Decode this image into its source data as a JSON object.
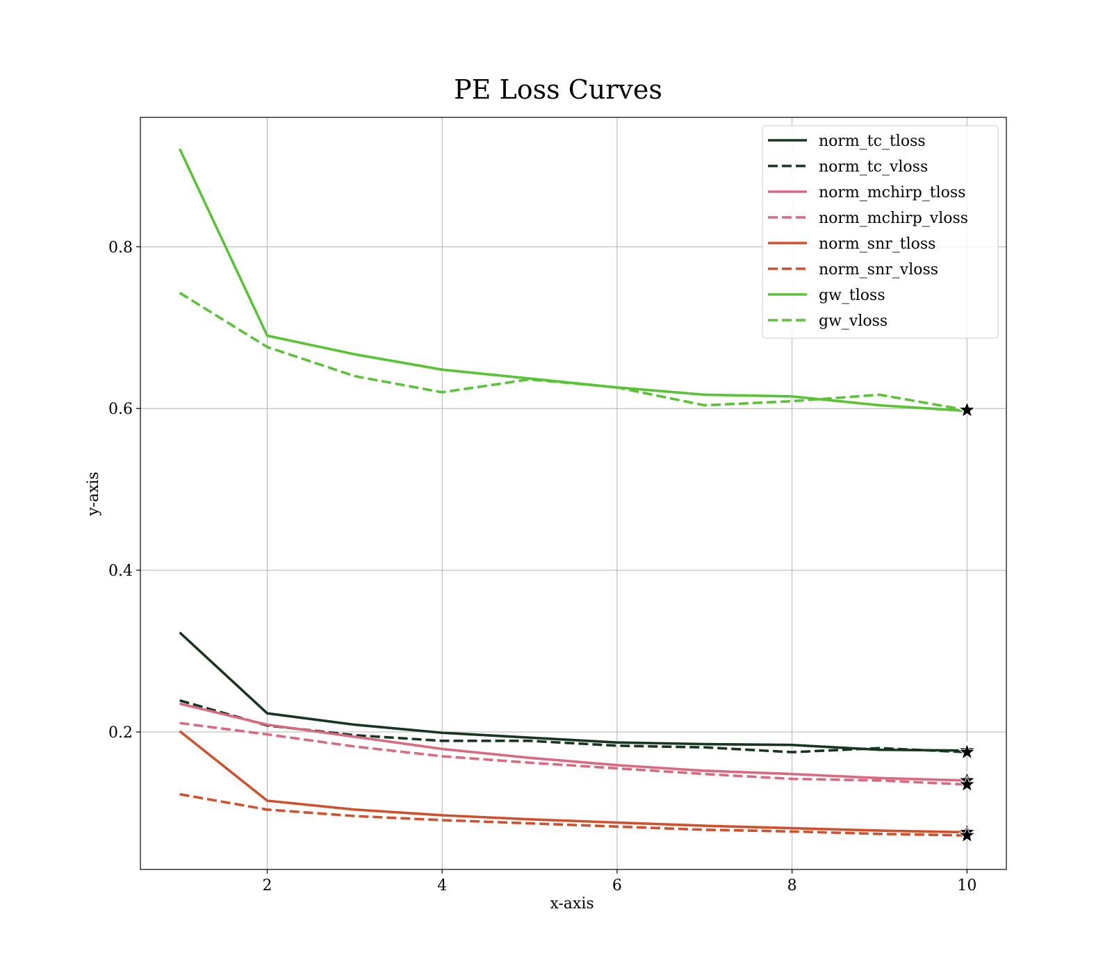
{
  "chart_data": {
    "type": "line",
    "title": "PE Loss Curves",
    "xlabel": "x-axis",
    "ylabel": "y-axis",
    "xlim": [
      0.55,
      10.45
    ],
    "ylim": [
      0.03,
      0.96
    ],
    "xticks": [
      2,
      4,
      6,
      8,
      10
    ],
    "xtick_labels": [
      "2",
      "4",
      "6",
      "8",
      "10"
    ],
    "yticks": [
      0.2,
      0.4,
      0.6,
      0.8
    ],
    "ytick_labels": [
      "0.2",
      "0.4",
      "0.6",
      "0.8"
    ],
    "grid": true,
    "legend_position": "top-right",
    "end_marker": "star",
    "x": [
      1,
      2,
      3,
      4,
      5,
      6,
      7,
      8,
      9,
      10
    ],
    "series": [
      {
        "name": "norm_tc_tloss",
        "color": "#17361f",
        "style": "solid",
        "values": [
          0.323,
          0.223,
          0.209,
          0.199,
          0.193,
          0.187,
          0.185,
          0.184,
          0.178,
          0.177
        ]
      },
      {
        "name": "norm_tc_vloss",
        "color": "#17361f",
        "style": "dashed",
        "values": [
          0.239,
          0.208,
          0.196,
          0.189,
          0.189,
          0.183,
          0.181,
          0.175,
          0.18,
          0.175
        ]
      },
      {
        "name": "norm_mchirp_tloss",
        "color": "#d8697e",
        "style": "solid",
        "values": [
          0.235,
          0.209,
          0.194,
          0.179,
          0.168,
          0.159,
          0.152,
          0.148,
          0.143,
          0.14
        ]
      },
      {
        "name": "norm_mchirp_vloss",
        "color": "#d8697e",
        "style": "dashed",
        "values": [
          0.211,
          0.197,
          0.182,
          0.17,
          0.162,
          0.155,
          0.148,
          0.142,
          0.14,
          0.135
        ]
      },
      {
        "name": "norm_snr_tloss",
        "color": "#d0502b",
        "style": "solid",
        "values": [
          0.201,
          0.115,
          0.104,
          0.097,
          0.092,
          0.088,
          0.084,
          0.081,
          0.078,
          0.076
        ]
      },
      {
        "name": "norm_snr_vloss",
        "color": "#d0502b",
        "style": "dashed",
        "values": [
          0.123,
          0.104,
          0.096,
          0.091,
          0.087,
          0.083,
          0.079,
          0.077,
          0.074,
          0.072
        ]
      },
      {
        "name": "gw_tloss",
        "color": "#58c334",
        "style": "solid",
        "values": [
          0.921,
          0.69,
          0.667,
          0.648,
          0.637,
          0.626,
          0.617,
          0.615,
          0.604,
          0.597
        ]
      },
      {
        "name": "gw_vloss",
        "color": "#58c334",
        "style": "dashed",
        "values": [
          0.743,
          0.676,
          0.64,
          0.62,
          0.636,
          0.626,
          0.604,
          0.609,
          0.617,
          0.598
        ]
      }
    ]
  }
}
